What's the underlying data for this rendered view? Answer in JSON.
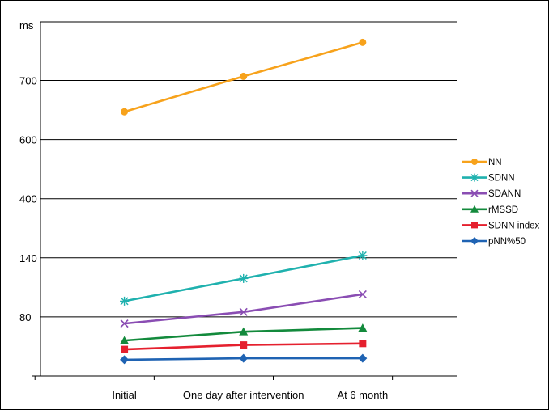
{
  "chart_data": {
    "type": "line",
    "title": "",
    "xlabel": "",
    "ylabel": "ms",
    "categories": [
      "Initial",
      "One day after intervention",
      "At 6 month"
    ],
    "yticks": [
      "80",
      "140",
      "400",
      "600",
      "700"
    ],
    "grid": true,
    "legend_position": "right",
    "series": [
      {
        "name": "NN",
        "color": "#F7A21B",
        "marker": "circle",
        "values": [
          647,
          707,
          765
        ]
      },
      {
        "name": "SDNN",
        "color": "#1FB1AE",
        "marker": "asterisk",
        "values": [
          96,
          119,
          150
        ]
      },
      {
        "name": "SDANN",
        "color": "#8A4DB3",
        "marker": "x",
        "values": [
          71,
          85,
          103
        ]
      },
      {
        "name": "rMSSD",
        "color": "#138A3C",
        "marker": "triangle",
        "values": [
          48,
          60,
          65
        ]
      },
      {
        "name": "SDNN index",
        "color": "#E5202E",
        "marker": "square",
        "values": [
          36,
          42,
          44
        ]
      },
      {
        "name": "pNN%50",
        "color": "#1F63B3",
        "marker": "diamond",
        "values": [
          22,
          24,
          24
        ]
      }
    ]
  }
}
